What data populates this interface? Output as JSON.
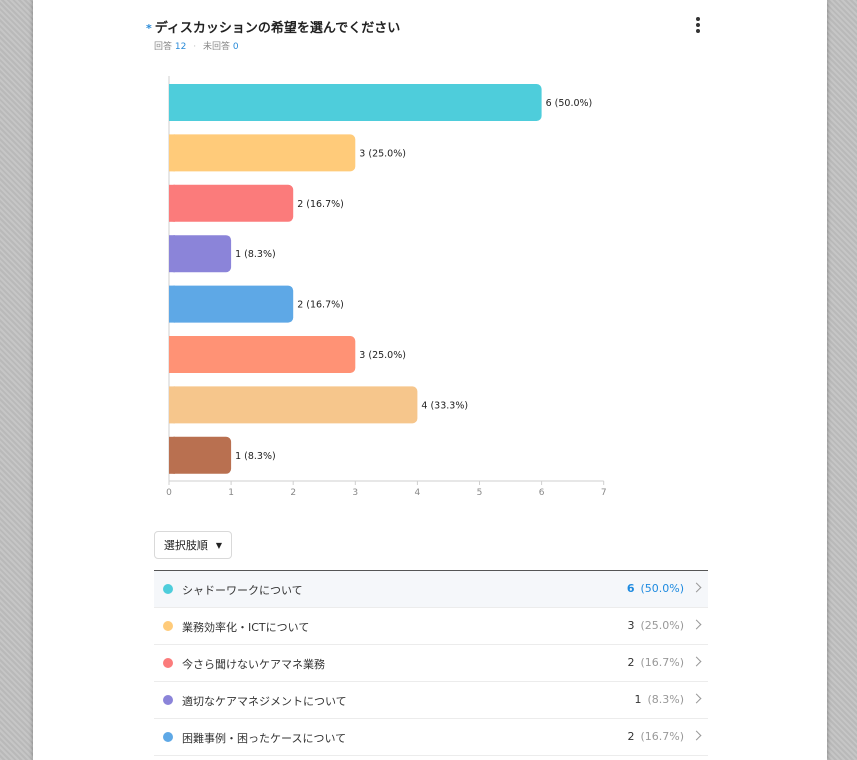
{
  "question": {
    "required_mark": "*",
    "title": "ディスカッションの希望を選んでください",
    "answered_label": "回答",
    "answered_count": "12",
    "unanswered_label": "未回答",
    "unanswered_count": "0"
  },
  "chart_data": {
    "type": "bar",
    "orientation": "horizontal",
    "categories": [
      "シャドーワークについて",
      "業務効率化・ICTについて",
      "今さら聞けないケアマネ業務",
      "適切なケアマネジメントについて",
      "困難事例・困ったケースについて",
      "",
      "",
      ""
    ],
    "values": [
      6,
      3,
      2,
      1,
      2,
      3,
      4,
      1
    ],
    "labels": [
      "6 (50.0%)",
      "3 (25.0%)",
      "2 (16.7%)",
      "1 (8.3%)",
      "2 (16.7%)",
      "3 (25.0%)",
      "4 (33.3%)",
      "1 (8.3%)"
    ],
    "colors": [
      "#4ecddb",
      "#ffcb7a",
      "#fb7b7b",
      "#8b84d9",
      "#5ea8e6",
      "#ff9275",
      "#f6c68c",
      "#b97050"
    ],
    "xlim": [
      0,
      7
    ],
    "xticks": [
      "0",
      "1",
      "2",
      "3",
      "4",
      "5",
      "6",
      "7"
    ],
    "grid": false,
    "title": "",
    "xlabel": "",
    "ylabel": ""
  },
  "sort_button": {
    "label": "選択肢順",
    "caret": "▼"
  },
  "options": [
    {
      "label": "シャドーワークについて",
      "count": "6",
      "percent": "(50.0%)",
      "color": "#4ecddb",
      "active": true
    },
    {
      "label": "業務効率化・ICTについて",
      "count": "3",
      "percent": "(25.0%)",
      "color": "#ffcb7a",
      "active": false
    },
    {
      "label": "今さら聞けないケアマネ業務",
      "count": "2",
      "percent": "(16.7%)",
      "color": "#fb7b7b",
      "active": false
    },
    {
      "label": "適切なケアマネジメントについて",
      "count": "1",
      "percent": "(8.3%)",
      "color": "#8b84d9",
      "active": false
    },
    {
      "label": "困難事例・困ったケースについて",
      "count": "2",
      "percent": "(16.7%)",
      "color": "#5ea8e6",
      "active": false
    }
  ]
}
